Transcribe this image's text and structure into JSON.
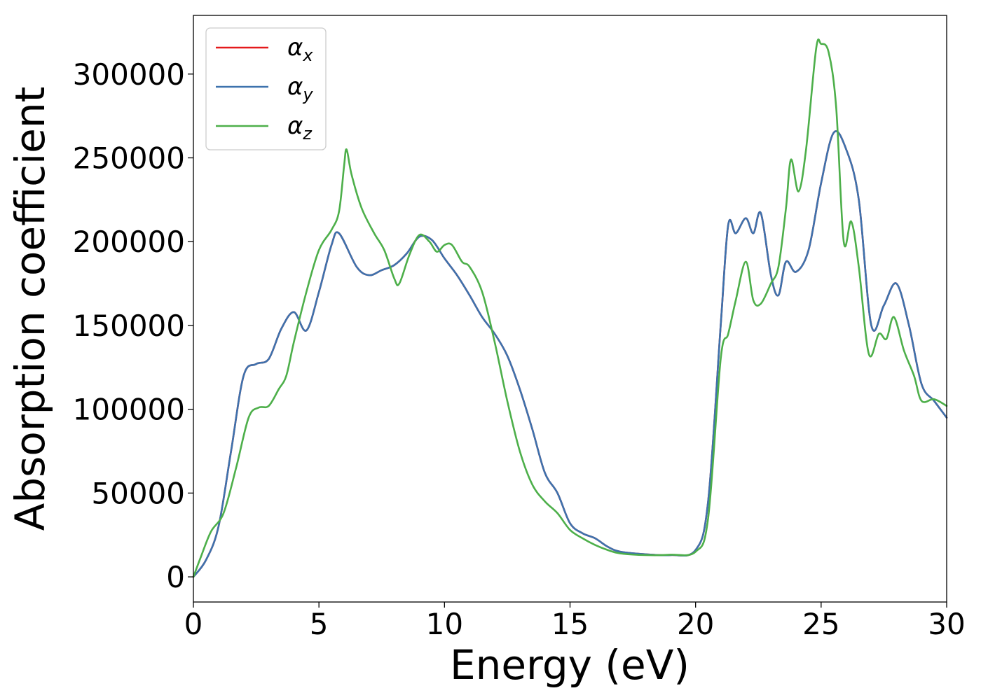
{
  "chart_data": {
    "type": "line",
    "xlabel": "Energy (eV)",
    "ylabel": "Absorption coefficient",
    "xlim": [
      0,
      30
    ],
    "ylim": [
      -15000,
      335000
    ],
    "xticks": [
      0,
      5,
      10,
      15,
      20,
      25,
      30
    ],
    "yticks": [
      0,
      50000,
      100000,
      150000,
      200000,
      250000,
      300000
    ],
    "grid": false,
    "legend": "top-left",
    "series": [
      {
        "name": "α",
        "sub": "x",
        "color": "#e41a1c",
        "x": [
          0,
          0.5,
          1,
          1.5,
          2,
          2.5,
          3,
          3.5,
          4,
          4.5,
          5,
          5.5,
          5.8,
          6.5,
          7,
          7.5,
          8,
          8.5,
          9,
          9.5,
          10,
          10.5,
          11,
          11.5,
          12,
          12.5,
          13,
          13.5,
          14,
          14.5,
          15,
          15.5,
          16,
          16.5,
          17,
          18,
          19,
          20,
          20.5,
          21,
          21.3,
          21.6,
          22,
          22.3,
          22.6,
          23,
          23.3,
          23.6,
          24,
          24.5,
          25,
          25.5,
          26,
          26.5,
          27,
          27.5,
          28,
          28.5,
          29,
          29.5,
          30
        ],
        "y": [
          0,
          10000,
          30000,
          75000,
          120000,
          127000,
          130000,
          148000,
          158000,
          147000,
          170000,
          198000,
          205000,
          185000,
          180000,
          183000,
          186000,
          193000,
          203000,
          201000,
          190000,
          180000,
          168000,
          155000,
          145000,
          132000,
          112000,
          88000,
          62000,
          50000,
          32000,
          26000,
          23000,
          18000,
          15000,
          13500,
          13000,
          16000,
          45000,
          150000,
          210000,
          205000,
          214000,
          205000,
          217000,
          180000,
          168000,
          188000,
          182000,
          195000,
          235000,
          265000,
          255000,
          225000,
          150000,
          162000,
          175000,
          150000,
          115000,
          105000,
          95000
        ]
      },
      {
        "name": "α",
        "sub": "y",
        "color": "#3d72ad",
        "x": [
          0,
          0.5,
          1,
          1.5,
          2,
          2.5,
          3,
          3.5,
          4,
          4.5,
          5,
          5.5,
          5.8,
          6.5,
          7,
          7.5,
          8,
          8.5,
          9,
          9.5,
          10,
          10.5,
          11,
          11.5,
          12,
          12.5,
          13,
          13.5,
          14,
          14.5,
          15,
          15.5,
          16,
          16.5,
          17,
          18,
          19,
          20,
          20.5,
          21,
          21.3,
          21.6,
          22,
          22.3,
          22.6,
          23,
          23.3,
          23.6,
          24,
          24.5,
          25,
          25.5,
          26,
          26.5,
          27,
          27.5,
          28,
          28.5,
          29,
          29.5,
          30
        ],
        "y": [
          0,
          10000,
          30000,
          75000,
          120000,
          127000,
          130000,
          148000,
          158000,
          147000,
          170000,
          198000,
          205000,
          185000,
          180000,
          183000,
          186000,
          193000,
          203000,
          201000,
          190000,
          180000,
          168000,
          155000,
          145000,
          132000,
          112000,
          88000,
          62000,
          50000,
          32000,
          26000,
          23000,
          18000,
          15000,
          13500,
          13000,
          16000,
          45000,
          150000,
          210000,
          205000,
          214000,
          205000,
          217000,
          180000,
          168000,
          188000,
          182000,
          195000,
          235000,
          265000,
          255000,
          225000,
          150000,
          162000,
          175000,
          150000,
          115000,
          105000,
          95000
        ]
      },
      {
        "name": "α",
        "sub": "z",
        "color": "#4daf4a",
        "x": [
          0,
          0.3,
          0.7,
          1.2,
          1.7,
          2.2,
          2.6,
          3,
          3.4,
          3.7,
          4,
          4.5,
          5,
          5.5,
          5.8,
          6,
          6.1,
          6.3,
          6.7,
          7.2,
          7.6,
          8,
          8.2,
          8.6,
          9,
          9.4,
          9.7,
          10,
          10.3,
          10.7,
          11,
          11.5,
          12,
          12.5,
          13,
          13.5,
          14,
          14.5,
          15,
          15.5,
          16,
          16.5,
          17,
          18,
          19,
          20,
          20.5,
          21,
          21.3,
          21.6,
          22,
          22.3,
          22.6,
          23,
          23.3,
          23.6,
          23.8,
          24.1,
          24.4,
          24.8,
          25,
          25.3,
          25.6,
          25.9,
          26.2,
          26.5,
          26.9,
          27.3,
          27.6,
          27.9,
          28.3,
          28.7,
          29,
          29.5,
          30
        ],
        "y": [
          0,
          12000,
          27000,
          38000,
          65000,
          95000,
          101000,
          102000,
          112000,
          120000,
          140000,
          170000,
          195000,
          207000,
          218000,
          245000,
          255000,
          240000,
          220000,
          205000,
          195000,
          178000,
          175000,
          192000,
          204000,
          200000,
          194000,
          198000,
          198000,
          188000,
          185000,
          170000,
          140000,
          105000,
          75000,
          55000,
          45000,
          38000,
          28000,
          23000,
          19000,
          16000,
          14000,
          13000,
          13200,
          15000,
          35000,
          130000,
          145000,
          165000,
          188000,
          165000,
          163000,
          175000,
          185000,
          220000,
          249000,
          230000,
          255000,
          315000,
          318000,
          313000,
          280000,
          200000,
          212000,
          185000,
          133000,
          145000,
          142000,
          155000,
          135000,
          120000,
          105000,
          106000,
          102000
        ]
      }
    ]
  }
}
